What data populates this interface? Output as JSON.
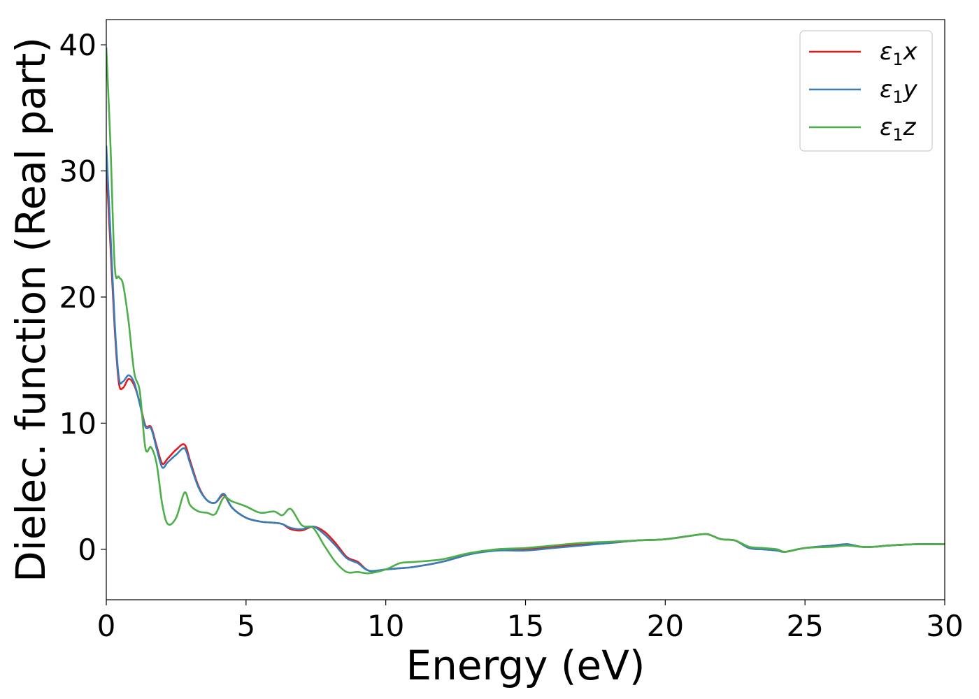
{
  "chart_data": {
    "type": "line",
    "title": "",
    "xlabel": "Energy (eV)",
    "ylabel": "Dielec. function (Real part)",
    "xlim": [
      0,
      30
    ],
    "ylim": [
      -4,
      42
    ],
    "xticks": [
      "0",
      "5",
      "10",
      "15",
      "20",
      "25",
      "30"
    ],
    "yticks": [
      "0",
      "10",
      "20",
      "30",
      "40"
    ],
    "grid": false,
    "legend_position": "top-right",
    "series": [
      {
        "name": "ε1x",
        "legend_main": "ε",
        "legend_sub": "1",
        "legend_suffix": "x",
        "color": "#e41a1c",
        "x": [
          0,
          0.15,
          0.3,
          0.45,
          0.6,
          0.8,
          1.0,
          1.2,
          1.4,
          1.6,
          1.8,
          2.0,
          2.2,
          2.5,
          2.8,
          3.0,
          3.3,
          3.6,
          3.9,
          4.2,
          4.5,
          5.0,
          5.5,
          6.0,
          6.3,
          6.6,
          7.0,
          7.4,
          7.8,
          8.2,
          8.6,
          9.0,
          9.4,
          10.0,
          10.5,
          11.0,
          12.0,
          13.0,
          14.0,
          15.0,
          16.0,
          17.0,
          18.0,
          19.0,
          20.0,
          21.0,
          21.5,
          22.0,
          22.5,
          23.0,
          23.5,
          24.0,
          24.3,
          25.0,
          26.0,
          26.5,
          27.0,
          27.5,
          28.0,
          29.0,
          30.0
        ],
        "values": [
          30.5,
          24.0,
          17.5,
          13.2,
          12.8,
          13.5,
          13.0,
          11.6,
          9.8,
          9.7,
          8.2,
          6.8,
          7.2,
          7.9,
          8.3,
          7.0,
          5.0,
          3.9,
          3.7,
          4.3,
          3.3,
          2.5,
          2.2,
          2.1,
          2.0,
          1.6,
          1.5,
          1.8,
          1.4,
          0.5,
          -0.6,
          -1.0,
          -1.7,
          -1.6,
          -1.5,
          -1.4,
          -1.0,
          -0.4,
          0.0,
          0.0,
          0.2,
          0.4,
          0.5,
          0.7,
          0.8,
          1.1,
          1.2,
          0.8,
          0.7,
          0.1,
          0.0,
          -0.1,
          -0.2,
          0.1,
          0.3,
          0.4,
          0.2,
          0.2,
          0.3,
          0.4,
          0.4
        ]
      },
      {
        "name": "ε1y",
        "legend_main": "ε",
        "legend_sub": "1",
        "legend_suffix": "y",
        "color": "#377eb8",
        "x": [
          0,
          0.15,
          0.3,
          0.45,
          0.6,
          0.8,
          1.0,
          1.2,
          1.4,
          1.6,
          1.8,
          2.0,
          2.2,
          2.5,
          2.8,
          3.0,
          3.3,
          3.6,
          3.9,
          4.2,
          4.5,
          5.0,
          5.5,
          6.0,
          6.3,
          6.6,
          7.0,
          7.4,
          7.8,
          8.2,
          8.6,
          9.0,
          9.4,
          10.0,
          10.5,
          11.0,
          12.0,
          13.0,
          14.0,
          15.0,
          16.0,
          17.0,
          18.0,
          19.0,
          20.0,
          21.0,
          21.5,
          22.0,
          22.5,
          23.0,
          23.5,
          24.0,
          24.3,
          25.0,
          26.0,
          26.5,
          27.0,
          27.5,
          28.0,
          29.0,
          30.0
        ],
        "values": [
          32.0,
          25.0,
          18.0,
          13.6,
          13.3,
          13.8,
          13.2,
          11.5,
          9.7,
          9.6,
          8.0,
          6.5,
          6.9,
          7.5,
          8.0,
          6.8,
          4.9,
          3.9,
          3.7,
          4.4,
          3.3,
          2.5,
          2.2,
          2.1,
          2.0,
          1.7,
          1.6,
          1.8,
          1.2,
          0.3,
          -0.7,
          -1.1,
          -1.7,
          -1.6,
          -1.5,
          -1.4,
          -1.0,
          -0.4,
          -0.1,
          -0.1,
          0.1,
          0.3,
          0.5,
          0.7,
          0.8,
          1.1,
          1.2,
          0.8,
          0.7,
          0.1,
          0.0,
          -0.1,
          -0.2,
          0.1,
          0.3,
          0.4,
          0.2,
          0.2,
          0.3,
          0.4,
          0.4
        ]
      },
      {
        "name": "ε1z",
        "legend_main": "ε",
        "legend_sub": "1",
        "legend_suffix": "z",
        "color": "#4daf4a",
        "x": [
          0,
          0.15,
          0.3,
          0.45,
          0.6,
          0.8,
          1.0,
          1.2,
          1.4,
          1.6,
          1.8,
          2.0,
          2.2,
          2.5,
          2.8,
          3.0,
          3.3,
          3.6,
          3.9,
          4.2,
          4.5,
          5.0,
          5.5,
          6.0,
          6.3,
          6.6,
          7.0,
          7.4,
          7.8,
          8.2,
          8.6,
          9.0,
          9.4,
          10.0,
          10.5,
          11.0,
          12.0,
          13.0,
          14.0,
          15.0,
          16.0,
          17.0,
          18.0,
          19.0,
          20.0,
          21.0,
          21.5,
          22.0,
          22.5,
          23.0,
          23.5,
          24.0,
          24.3,
          25.0,
          26.0,
          26.5,
          27.0,
          27.5,
          28.0,
          29.0,
          30.0
        ],
        "values": [
          39.8,
          32.0,
          22.5,
          21.6,
          21.0,
          18.0,
          14.0,
          12.5,
          8.0,
          8.1,
          6.8,
          3.6,
          2.0,
          2.5,
          4.5,
          3.5,
          3.0,
          2.9,
          2.8,
          4.1,
          3.8,
          3.4,
          2.9,
          3.0,
          2.7,
          3.2,
          1.9,
          1.7,
          0.3,
          -1.0,
          -1.8,
          -1.8,
          -1.9,
          -1.6,
          -1.1,
          -1.0,
          -0.8,
          -0.3,
          0.0,
          0.1,
          0.3,
          0.5,
          0.6,
          0.7,
          0.8,
          1.1,
          1.2,
          0.8,
          0.7,
          0.2,
          0.1,
          0.0,
          -0.2,
          0.1,
          0.2,
          0.3,
          0.2,
          0.2,
          0.3,
          0.4,
          0.4
        ]
      }
    ]
  }
}
